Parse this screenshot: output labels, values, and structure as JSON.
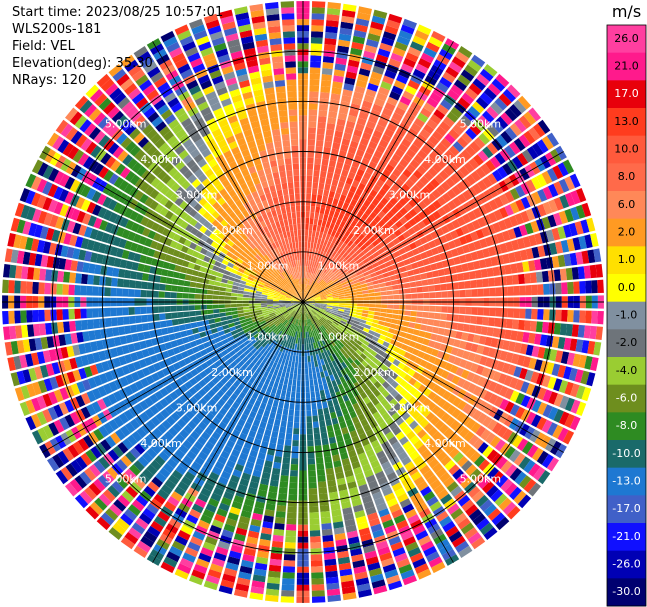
{
  "info": {
    "start_time": "Start time: 2023/08/25 10:57:01",
    "instrument": "WLS200s-181",
    "field": "Field: VEL",
    "elevation": "Elevation(deg): 35.30",
    "nrays": "NRays: 120"
  },
  "chart_data": {
    "type": "ppi",
    "field": "VEL",
    "units": "m/s",
    "elevation_deg": 35.3,
    "nrays": 120,
    "max_range_km": 6.0,
    "range_rings_km": [
      1,
      2,
      3,
      4,
      5
    ],
    "ring_labels": [
      "1.00km",
      "2.00km",
      "3.00km",
      "4.00km",
      "5.00km"
    ],
    "noisy_beyond_km": 4.2,
    "wind_pattern": {
      "description": "radial velocity dipole, positive toward north, negative toward south",
      "max_positive_ms": 21.0,
      "max_negative_ms": -13.0
    },
    "colorbar": {
      "label": "m/s",
      "ticks": [
        "26.0",
        "21.0",
        "17.0",
        "13.0",
        "10.0",
        "8.0",
        "6.0",
        "2.0",
        "1.0",
        "0.0",
        "-1.0",
        "-2.0",
        "-4.0",
        "-6.0",
        "-8.0",
        "-10.0",
        "-13.0",
        "-17.0",
        "-21.0",
        "-26.0",
        "-30.0"
      ],
      "bins": [
        {
          "min": 26,
          "max": 30,
          "color": "#ff3fa0"
        },
        {
          "min": 21,
          "max": 26,
          "color": "#ff1a8c"
        },
        {
          "min": 17,
          "max": 21,
          "color": "#e8000b"
        },
        {
          "min": 13,
          "max": 17,
          "color": "#ff3c1e"
        },
        {
          "min": 10,
          "max": 13,
          "color": "#ff5a3c"
        },
        {
          "min": 8,
          "max": 10,
          "color": "#ff6a4a"
        },
        {
          "min": 6,
          "max": 8,
          "color": "#ff8858"
        },
        {
          "min": 2,
          "max": 6,
          "color": "#ff9a22"
        },
        {
          "min": 1,
          "max": 2,
          "color": "#ffe000"
        },
        {
          "min": 0,
          "max": 1,
          "color": "#ffff00"
        },
        {
          "min": -1,
          "max": 0,
          "color": "#8090a0"
        },
        {
          "min": -2,
          "max": -1,
          "color": "#6e747a"
        },
        {
          "min": -4,
          "max": -2,
          "color": "#9acd32"
        },
        {
          "min": -6,
          "max": -4,
          "color": "#6e8e1e"
        },
        {
          "min": -8,
          "max": -6,
          "color": "#2e8b22"
        },
        {
          "min": -10,
          "max": -8,
          "color": "#1a6a6a"
        },
        {
          "min": -13,
          "max": -10,
          "color": "#1e78d2"
        },
        {
          "min": -17,
          "max": -13,
          "color": "#4060c8"
        },
        {
          "min": -21,
          "max": -17,
          "color": "#1010ff"
        },
        {
          "min": -26,
          "max": -21,
          "color": "#0000b4"
        },
        {
          "min": -30,
          "max": -26,
          "color": "#000070"
        }
      ]
    }
  }
}
